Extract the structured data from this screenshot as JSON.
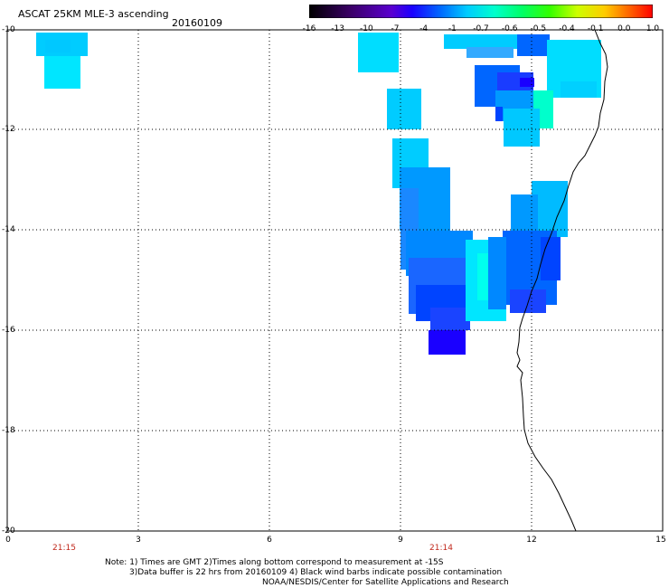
{
  "title": "ASCAT 25KM MLE-3 ascending",
  "date": "20160109",
  "colorbar": {
    "labels": [
      "-16",
      "-13",
      "-10",
      "-7",
      "-4",
      "-1",
      "-0.7",
      "-0.6",
      "-0.5",
      "-0.4",
      "-0.1",
      "0.0",
      "1.0"
    ],
    "colors": [
      "#000000",
      "#3a0066",
      "#6a00c8",
      "#2200ff",
      "#0066ff",
      "#00ccff",
      "#00ffcc",
      "#00ff66",
      "#33ff00",
      "#ccff00",
      "#ffcc00",
      "#ff6600",
      "#ff0000"
    ]
  },
  "axes": {
    "y_ticks": [
      "-10",
      "-12",
      "-14",
      "-16",
      "-18",
      "-20"
    ],
    "x_ticks": [
      "0",
      "3",
      "6",
      "9",
      "12",
      "15"
    ]
  },
  "time_labels": [
    "21:15",
    "21:14"
  ],
  "notes": [
    "Note: 1) Times are GMT 2)Times along bottom correspond to measurement at -15S",
    "3)Data buffer is 22 hrs from 20160109 4) Black wind barbs indicate possible contamination",
    "NOAA/NESDIS/Center for Satellite Applications and Research"
  ],
  "palette": {
    "cyan": "#00eeff",
    "light_blue": "#00ccff",
    "mid_blue": "#0099ff",
    "blue": "#0066ff",
    "deep_blue": "#0033ff",
    "navy": "#1a00ff",
    "green_tint": "#00ff99"
  }
}
